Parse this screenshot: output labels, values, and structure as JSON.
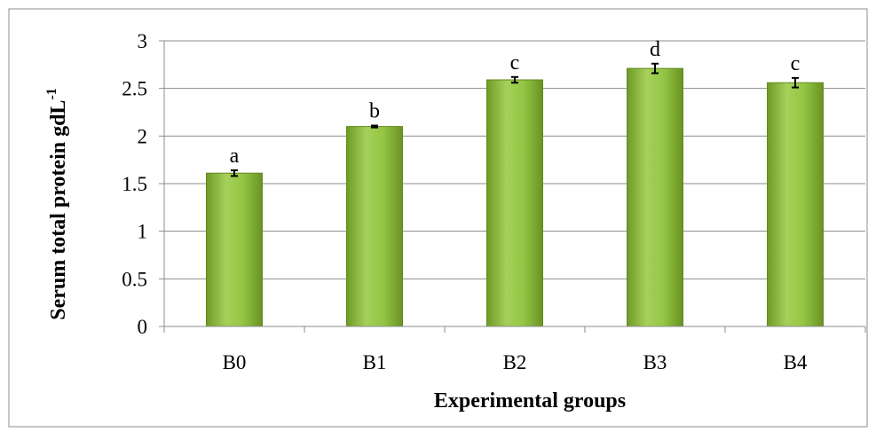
{
  "chart_data": {
    "type": "bar",
    "categories": [
      "B0",
      "B1",
      "B2",
      "B3",
      "B4"
    ],
    "values": [
      1.61,
      2.1,
      2.59,
      2.71,
      2.56
    ],
    "error": [
      0.03,
      0.01,
      0.03,
      0.05,
      0.05
    ],
    "significance_labels": [
      "a",
      "b",
      "c",
      "d",
      "c"
    ],
    "xlabel": "Experimental groups",
    "ylabel": "Serum total protein gdL",
    "ylabel_superscript": "-1",
    "ylim": [
      0,
      3
    ],
    "yticks": [
      "0",
      "0.5",
      "1",
      "1.5",
      "2",
      "2.5",
      "3"
    ],
    "grid": true,
    "legend": "none",
    "bar_color": "#8dc03b"
  }
}
